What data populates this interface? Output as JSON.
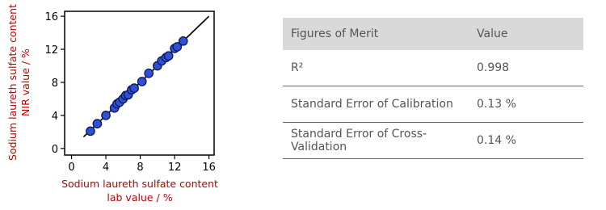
{
  "chart_data": {
    "type": "scatter",
    "ylabel": [
      "Sodium laureth sulfate content",
      "NIR value / %"
    ],
    "xlabel": [
      "Sodium laureth sulfate content",
      "lab value / %"
    ],
    "xlim": [
      -0.8,
      16.6
    ],
    "ylim": [
      -0.8,
      16.6
    ],
    "xticks": [
      0,
      4,
      8,
      12,
      16
    ],
    "yticks": [
      0,
      4,
      8,
      12,
      16
    ],
    "grid": false,
    "series": [
      {
        "color": "#2e4fd6",
        "x": [
          2.2,
          3,
          4,
          5,
          5.3,
          5.6,
          6,
          6.3,
          6.6,
          7,
          7.3,
          8.2,
          9,
          10,
          10.5,
          11,
          11.3,
          12,
          12.3,
          13
        ],
        "values": [
          2.1,
          3,
          4,
          4.9,
          5.4,
          5.6,
          6,
          6.4,
          6.5,
          7.1,
          7.3,
          8.1,
          9.1,
          10,
          10.6,
          11,
          11.2,
          12.1,
          12.3,
          13
        ]
      },
      {
        "color": "#111111",
        "x": [
          1.4,
          16
        ],
        "values": [
          1.4,
          16
        ]
      }
    ]
  },
  "table": {
    "header": [
      "Figures of Merit",
      "Value"
    ],
    "rows": [
      [
        "R²",
        "0.998"
      ],
      [
        "Standard Error of Calibration",
        "0.13 %"
      ],
      [
        "Standard Error of Cross-Validation",
        "0.14 %"
      ]
    ]
  }
}
